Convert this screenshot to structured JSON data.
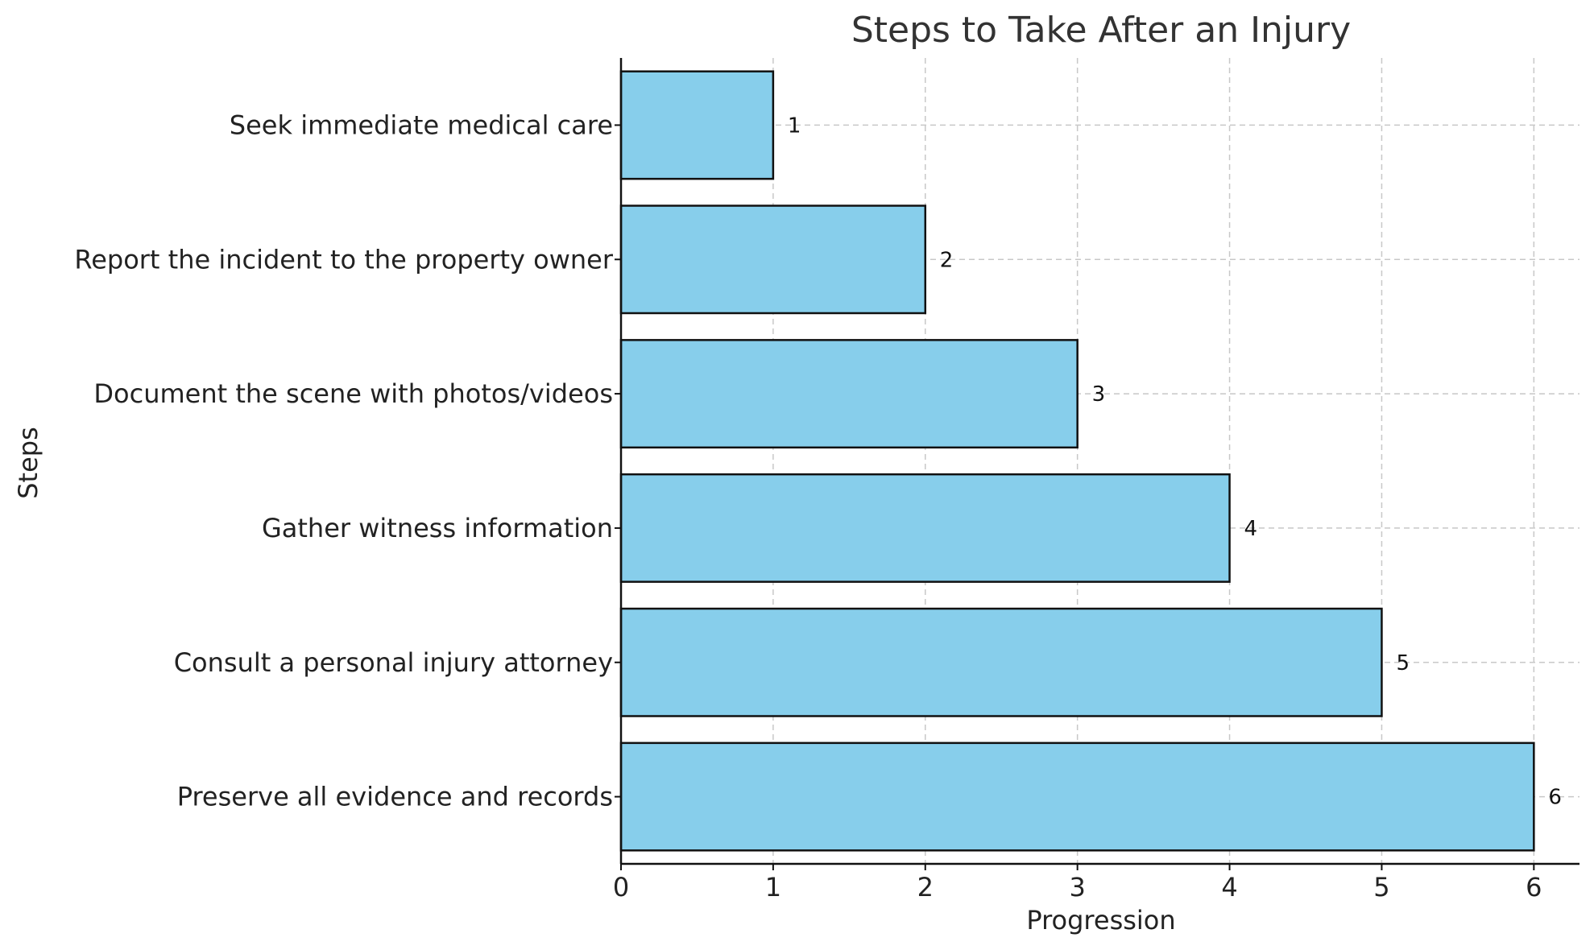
{
  "chart_data": {
    "type": "bar",
    "orientation": "horizontal",
    "title": "Steps to Take After an Injury",
    "xlabel": "Progression",
    "ylabel": "Steps",
    "xlim": [
      0,
      6.3
    ],
    "xticks": [
      0,
      1,
      2,
      3,
      4,
      5,
      6
    ],
    "grid": true,
    "categories": [
      "Seek immediate medical care",
      "Report the incident to the property owner",
      "Document the scene with photos/videos",
      "Gather witness information",
      "Consult a personal injury attorney",
      "Preserve all evidence and records"
    ],
    "values": [
      1,
      2,
      3,
      4,
      5,
      6
    ],
    "data_labels": [
      "1",
      "2",
      "3",
      "4",
      "5",
      "6"
    ],
    "colors": {
      "bar_fill": "#87ceeb",
      "bar_edge": "#111111",
      "grid": "#c8c8c8",
      "title": "#333333"
    }
  }
}
